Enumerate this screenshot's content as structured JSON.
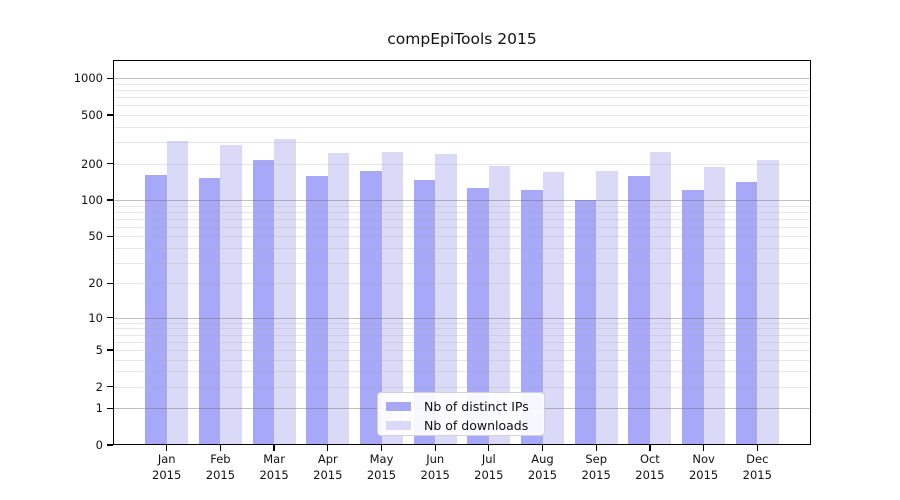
{
  "chart_data": {
    "type": "bar",
    "title": "compEpiTools 2015",
    "x_categories": [
      "Jan",
      "Feb",
      "Mar",
      "Apr",
      "May",
      "Jun",
      "Jul",
      "Aug",
      "Sep",
      "Oct",
      "Nov",
      "Dec"
    ],
    "x_year": "2015",
    "series": [
      {
        "name": "Nb of distinct IPs",
        "color": "#a8a8f8",
        "values": [
          160,
          152,
          215,
          157,
          175,
          146,
          126,
          121,
          100,
          159,
          122,
          140
        ]
      },
      {
        "name": "Nb of downloads",
        "color": "#dadaf8",
        "values": [
          308,
          287,
          318,
          245,
          250,
          242,
          190,
          172,
          175,
          248,
          186,
          215
        ]
      }
    ],
    "y_scale": "log10(1+v)",
    "y_ticks": [
      0,
      1,
      2,
      5,
      10,
      20,
      50,
      100,
      200,
      500,
      1000
    ],
    "y_major_gridlines": [
      1,
      10,
      100,
      1000
    ],
    "ylim": [
      0,
      1400
    ],
    "grid": true,
    "legend_position": "bottom-center"
  },
  "colors": {
    "axis": "#000000",
    "major_grid": "#bcbcbc",
    "minor_grid": "#e9e9e9",
    "text": "#111111",
    "background": "#ffffff"
  }
}
